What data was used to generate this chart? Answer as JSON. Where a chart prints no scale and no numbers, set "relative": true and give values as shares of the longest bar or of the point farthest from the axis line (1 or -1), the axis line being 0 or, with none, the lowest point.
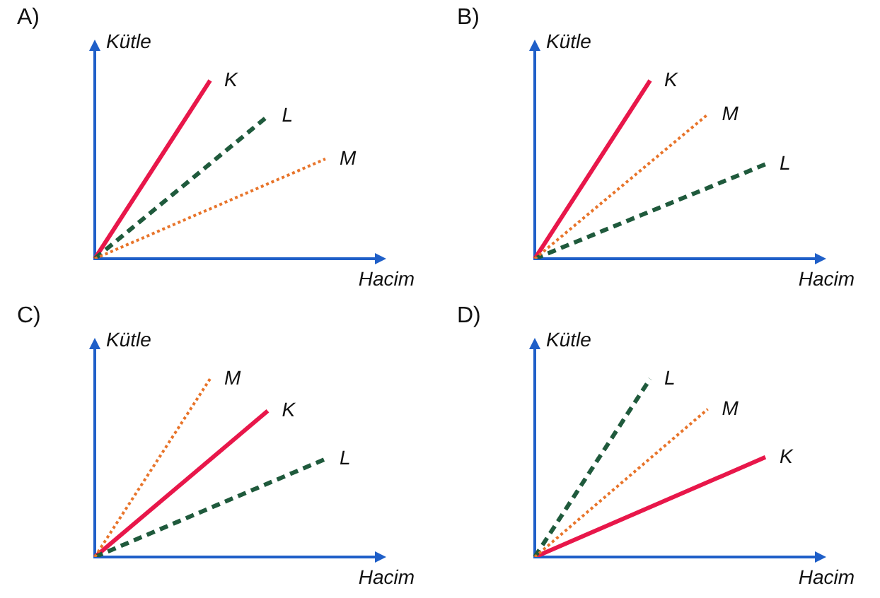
{
  "chart_data": [
    {
      "type": "line",
      "title": "A)",
      "xlabel": "Hacim",
      "ylabel": "Kütle",
      "relative": true,
      "legend": false,
      "categories": [
        null,
        null,
        null,
        null,
        null
      ],
      "series": [
        {
          "name": "K",
          "color": "#e8174a",
          "line_style": "solid",
          "values": [
            0,
            null,
            1,
            null,
            null
          ]
        },
        {
          "name": "L",
          "color": "#1f5a3c",
          "line_style": "dashed",
          "values": [
            0,
            null,
            null,
            0.8,
            null
          ]
        },
        {
          "name": "M",
          "color": "#e8742a",
          "line_style": "dotted",
          "values": [
            0,
            null,
            null,
            null,
            0.56
          ]
        }
      ]
    },
    {
      "type": "line",
      "title": "B)",
      "xlabel": "Hacim",
      "ylabel": "Kütle",
      "relative": true,
      "legend": false,
      "categories": [
        null,
        null,
        null,
        null,
        null
      ],
      "series": [
        {
          "name": "K",
          "color": "#e8174a",
          "line_style": "solid",
          "values": [
            0,
            null,
            1,
            null,
            null
          ]
        },
        {
          "name": "L",
          "color": "#1f5a3c",
          "line_style": "dashed",
          "values": [
            0,
            null,
            null,
            null,
            0.53
          ]
        },
        {
          "name": "M",
          "color": "#e8742a",
          "line_style": "dotted",
          "values": [
            0,
            null,
            null,
            0.81,
            null
          ]
        }
      ]
    },
    {
      "type": "line",
      "title": "C)",
      "xlabel": "Hacim",
      "ylabel": "Kütle",
      "relative": true,
      "legend": false,
      "categories": [
        null,
        null,
        null,
        null,
        null
      ],
      "series": [
        {
          "name": "K",
          "color": "#e8174a",
          "line_style": "solid",
          "values": [
            0,
            null,
            null,
            0.82,
            null
          ]
        },
        {
          "name": "L",
          "color": "#1f5a3c",
          "line_style": "dashed",
          "values": [
            0,
            null,
            null,
            null,
            0.55
          ]
        },
        {
          "name": "M",
          "color": "#e8742a",
          "line_style": "dotted",
          "values": [
            0,
            null,
            1,
            null,
            null
          ]
        }
      ]
    },
    {
      "type": "line",
      "title": "D)",
      "xlabel": "Hacim",
      "ylabel": "Kütle",
      "relative": true,
      "legend": false,
      "categories": [
        null,
        null,
        null,
        null,
        null
      ],
      "series": [
        {
          "name": "K",
          "color": "#e8174a",
          "line_style": "solid",
          "values": [
            0,
            null,
            null,
            null,
            0.56
          ]
        },
        {
          "name": "L",
          "color": "#1f5a3c",
          "line_style": "dashed",
          "values": [
            0,
            null,
            1,
            null,
            null
          ]
        },
        {
          "name": "M",
          "color": "#e8742a",
          "line_style": "dotted",
          "values": [
            0,
            null,
            null,
            0.83,
            null
          ]
        }
      ]
    }
  ]
}
